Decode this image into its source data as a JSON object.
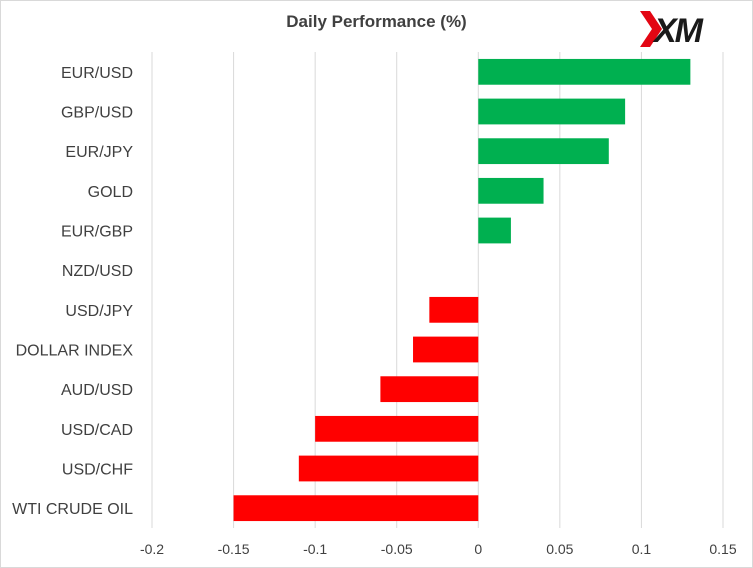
{
  "chart_data": {
    "type": "bar",
    "orientation": "horizontal",
    "title": "Daily Performance  (%)",
    "categories": [
      "EUR/USD",
      "GBP/USD",
      "EUR/JPY",
      "GOLD",
      "EUR/GBP",
      "NZD/USD",
      "USD/JPY",
      "DOLLAR INDEX",
      "AUD/USD",
      "USD/CAD",
      "USD/CHF",
      "WTI CRUDE OIL"
    ],
    "values": [
      0.13,
      0.09,
      0.08,
      0.04,
      0.02,
      0,
      -0.03,
      -0.04,
      -0.06,
      -0.1,
      -0.11,
      -0.15
    ],
    "xlim": [
      -0.2,
      0.15
    ],
    "xticks": [
      "-0.2",
      "-0.15",
      "-0.1",
      "-0.05",
      "0",
      "0.05",
      "0.1",
      "0.15"
    ],
    "xlabel": "",
    "ylabel": "",
    "grid": "vertical",
    "legend": "none",
    "colors": {
      "positive": "#00b050",
      "negative": "#ff0000",
      "grid": "#d9d9d9",
      "text": "#404040"
    }
  },
  "logo": {
    "text": "XM",
    "color": "#1a1a1a",
    "accent": "#e30613"
  }
}
